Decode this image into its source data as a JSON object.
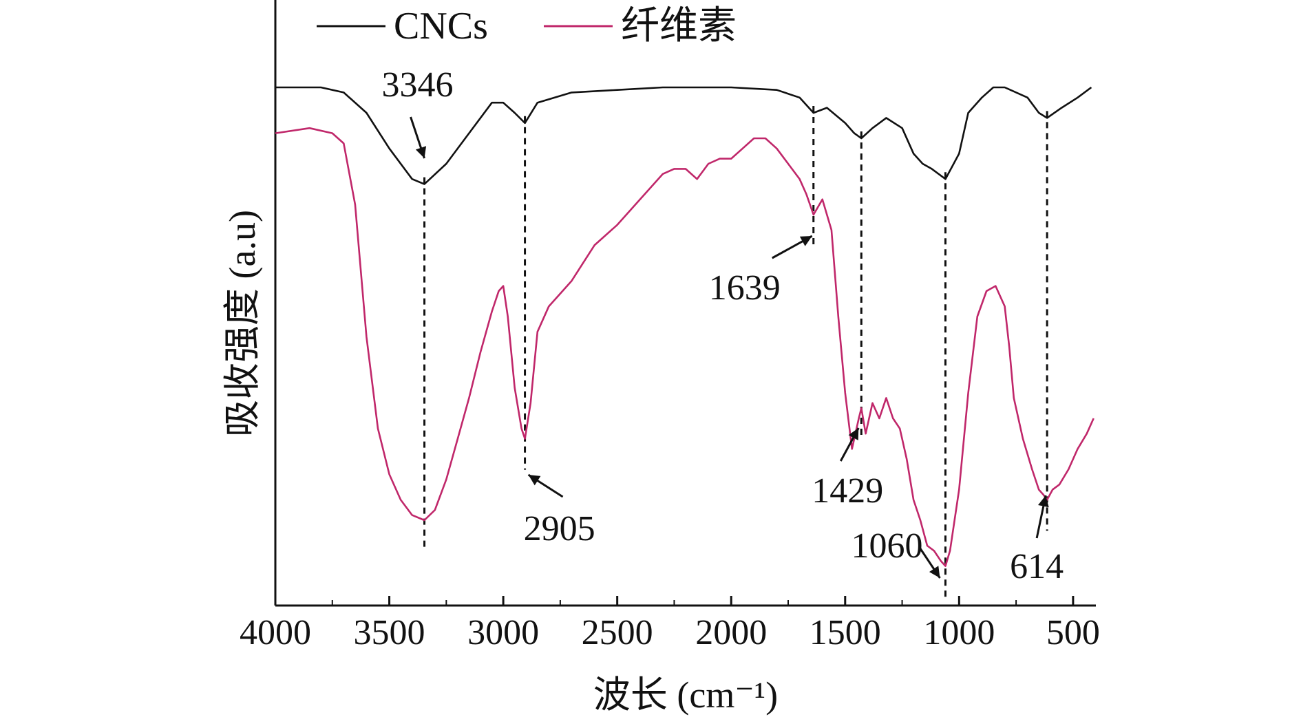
{
  "chart_data": {
    "type": "line",
    "xlabel": "波长 (cm⁻¹)",
    "ylabel": "吸收强度 (a.u)",
    "xlim": [
      4000,
      400
    ],
    "xaxis_reversed": true,
    "x_ticks": [
      4000,
      3500,
      3000,
      2500,
      2000,
      1500,
      1000,
      500
    ],
    "legend_position": "top-left",
    "series": [
      {
        "name": "CNCs",
        "color": "#111111",
        "x": [
          4000,
          3800,
          3700,
          3600,
          3500,
          3400,
          3346,
          3250,
          3150,
          3050,
          3000,
          2950,
          2905,
          2850,
          2700,
          2500,
          2300,
          2000,
          1800,
          1700,
          1639,
          1580,
          1500,
          1460,
          1429,
          1380,
          1320,
          1250,
          1200,
          1160,
          1120,
          1060,
          1000,
          960,
          900,
          850,
          800,
          700,
          650,
          614,
          550,
          480,
          420
        ],
        "y": [
          0.95,
          0.95,
          0.94,
          0.9,
          0.83,
          0.77,
          0.76,
          0.8,
          0.86,
          0.92,
          0.92,
          0.9,
          0.88,
          0.92,
          0.94,
          0.945,
          0.95,
          0.95,
          0.945,
          0.93,
          0.9,
          0.91,
          0.88,
          0.86,
          0.85,
          0.87,
          0.89,
          0.87,
          0.82,
          0.8,
          0.79,
          0.77,
          0.82,
          0.9,
          0.93,
          0.95,
          0.95,
          0.93,
          0.9,
          0.89,
          0.91,
          0.93,
          0.95
        ]
      },
      {
        "name": "纤维素",
        "color": "#c0276a",
        "x": [
          4000,
          3850,
          3750,
          3700,
          3650,
          3600,
          3550,
          3500,
          3450,
          3400,
          3346,
          3300,
          3250,
          3200,
          3150,
          3100,
          3050,
          3020,
          3000,
          2980,
          2950,
          2920,
          2905,
          2880,
          2850,
          2800,
          2700,
          2600,
          2500,
          2400,
          2300,
          2250,
          2200,
          2150,
          2100,
          2050,
          2000,
          1950,
          1900,
          1850,
          1800,
          1750,
          1700,
          1670,
          1639,
          1600,
          1560,
          1530,
          1500,
          1470,
          1440,
          1429,
          1410,
          1380,
          1350,
          1320,
          1290,
          1260,
          1230,
          1200,
          1170,
          1140,
          1110,
          1080,
          1060,
          1040,
          1000,
          960,
          920,
          880,
          840,
          800,
          780,
          760,
          720,
          680,
          650,
          630,
          614,
          590,
          560,
          520,
          480,
          440,
          410
        ],
        "y": [
          0.86,
          0.87,
          0.86,
          0.84,
          0.72,
          0.46,
          0.28,
          0.19,
          0.14,
          0.11,
          0.1,
          0.12,
          0.18,
          0.26,
          0.34,
          0.43,
          0.51,
          0.55,
          0.56,
          0.5,
          0.36,
          0.28,
          0.26,
          0.33,
          0.47,
          0.52,
          0.57,
          0.64,
          0.68,
          0.73,
          0.78,
          0.79,
          0.79,
          0.77,
          0.8,
          0.81,
          0.81,
          0.83,
          0.85,
          0.85,
          0.83,
          0.8,
          0.77,
          0.74,
          0.7,
          0.73,
          0.67,
          0.5,
          0.35,
          0.24,
          0.3,
          0.32,
          0.27,
          0.33,
          0.3,
          0.34,
          0.3,
          0.28,
          0.22,
          0.14,
          0.1,
          0.05,
          0.04,
          0.02,
          0.01,
          0.04,
          0.16,
          0.35,
          0.5,
          0.55,
          0.56,
          0.52,
          0.44,
          0.34,
          0.26,
          0.2,
          0.16,
          0.15,
          0.14,
          0.16,
          0.17,
          0.2,
          0.24,
          0.27,
          0.3
        ]
      }
    ],
    "annotations": [
      {
        "text": "3346",
        "x": 3346,
        "series": "CNCs"
      },
      {
        "text": "2905",
        "x": 2905,
        "series": "纤维素"
      },
      {
        "text": "1639",
        "x": 1639,
        "series": "纤维素"
      },
      {
        "text": "1429",
        "x": 1429,
        "series": "纤维素"
      },
      {
        "text": "1060",
        "x": 1060,
        "series": "纤维素"
      },
      {
        "text": "614",
        "x": 614,
        "series": "纤维素"
      }
    ]
  }
}
